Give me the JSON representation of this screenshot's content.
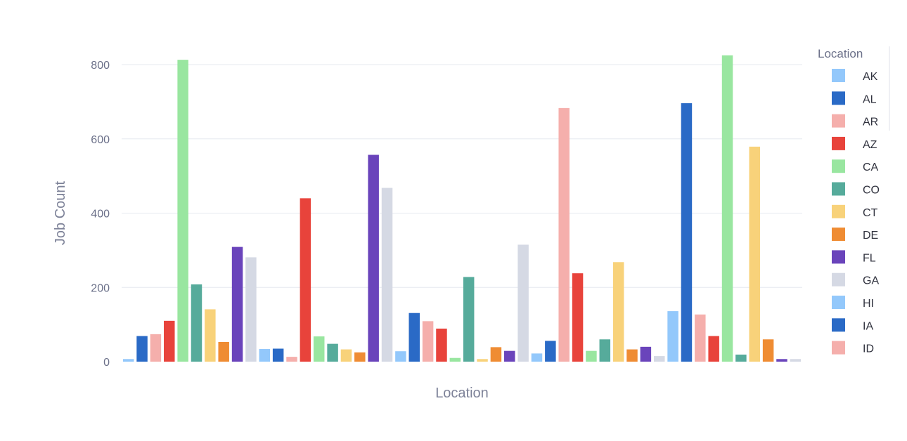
{
  "chart_data": {
    "type": "bar",
    "xlabel": "Location",
    "ylabel": "Job Count",
    "ylim": [
      0,
      840
    ],
    "yticks": [
      0,
      200,
      400,
      600,
      800
    ],
    "grid": true,
    "legend": {
      "title": "Location",
      "placement": "right",
      "visible_entries": [
        "AK",
        "AL",
        "AR",
        "AZ",
        "CA",
        "CO",
        "CT",
        "DE",
        "FL",
        "GA",
        "HI",
        "IA",
        "ID"
      ]
    },
    "palette": [
      "#93c8fb",
      "#2a6ac6",
      "#f5afac",
      "#e8433b",
      "#99e6a0",
      "#56ab9b",
      "#f8d27a",
      "#ef8c33",
      "#6a44bb",
      "#d5d9e4"
    ],
    "values": [
      7,
      69,
      74,
      110,
      813,
      208,
      141,
      53,
      309,
      281,
      34,
      35,
      13,
      440,
      68,
      48,
      33,
      25,
      557,
      468,
      28,
      131,
      109,
      89,
      10,
      228,
      7,
      39,
      29,
      315,
      22,
      56,
      683,
      238,
      29,
      60,
      268,
      33,
      40,
      15,
      136,
      696,
      127,
      69,
      825,
      19,
      579,
      60,
      7,
      7
    ]
  }
}
